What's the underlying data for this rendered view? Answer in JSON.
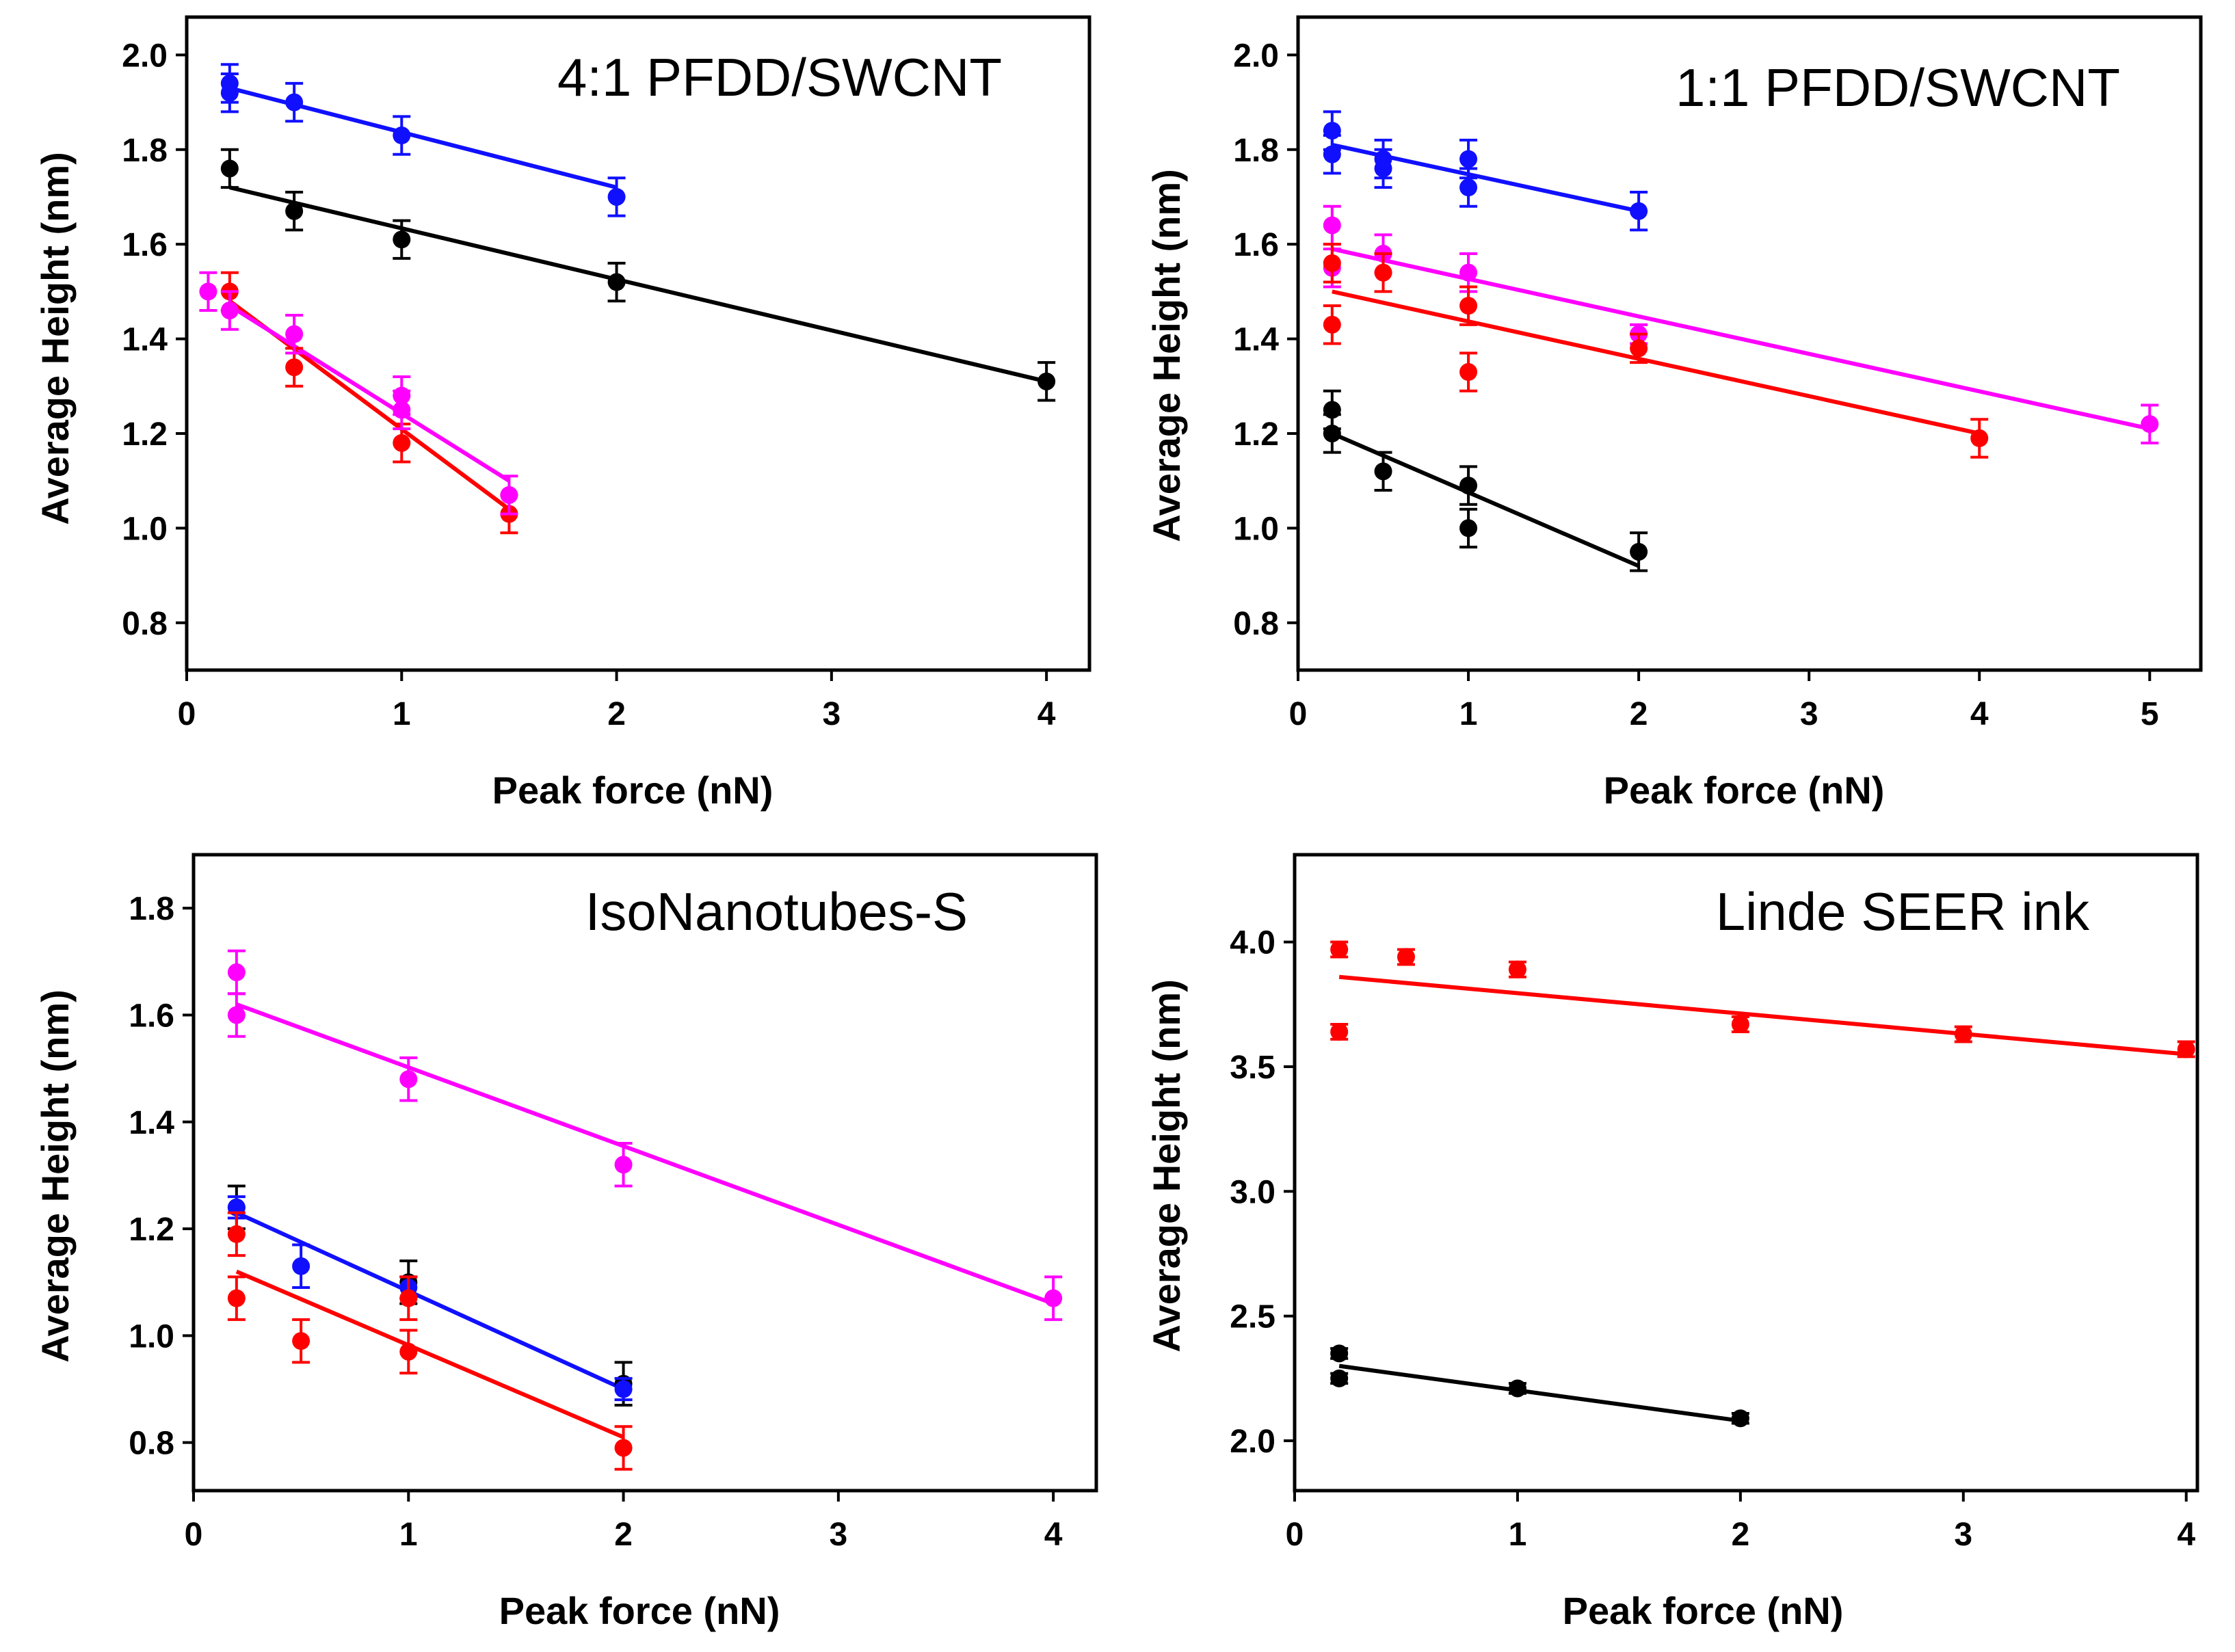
{
  "chart_data": [
    {
      "type": "scatter",
      "title": "4:1 PFDD/SWCNT",
      "xlabel": "Peak force (nN)",
      "ylabel": "Average Height (nm)",
      "xlim": [
        0,
        4.2
      ],
      "ylim": [
        0.7,
        2.08
      ],
      "xticks": [
        "0",
        "1",
        "2",
        "3",
        "4"
      ],
      "yticks": [
        "0.8",
        "1.0",
        "1.2",
        "1.4",
        "1.6",
        "1.8",
        "2.0"
      ],
      "series": [
        {
          "name": "blue",
          "color": "#1010ff",
          "points": [
            [
              0.2,
              1.94
            ],
            [
              0.2,
              1.92
            ],
            [
              0.5,
              1.9
            ],
            [
              1.0,
              1.83
            ],
            [
              2.0,
              1.7
            ]
          ],
          "errors": [
            0.04,
            0.04,
            0.04,
            0.04,
            0.04
          ],
          "fit": [
            [
              0.2,
              1.93
            ],
            [
              2.0,
              1.72
            ]
          ]
        },
        {
          "name": "black",
          "color": "#000000",
          "points": [
            [
              0.2,
              1.76
            ],
            [
              0.5,
              1.67
            ],
            [
              1.0,
              1.61
            ],
            [
              2.0,
              1.52
            ],
            [
              4.0,
              1.31
            ]
          ],
          "errors": [
            0.04,
            0.04,
            0.04,
            0.04,
            0.04
          ],
          "fit": [
            [
              0.2,
              1.72
            ],
            [
              4.0,
              1.31
            ]
          ]
        },
        {
          "name": "red",
          "color": "#ff0000",
          "points": [
            [
              0.2,
              1.5
            ],
            [
              0.5,
              1.34
            ],
            [
              1.0,
              1.18
            ],
            [
              1.5,
              1.03
            ]
          ],
          "errors": [
            0.04,
            0.04,
            0.04,
            0.04
          ],
          "fit": [
            [
              0.2,
              1.48
            ],
            [
              1.5,
              1.04
            ]
          ]
        },
        {
          "name": "magenta",
          "color": "#ff00ff",
          "points": [
            [
              0.1,
              1.5
            ],
            [
              0.2,
              1.46
            ],
            [
              0.5,
              1.41
            ],
            [
              1.0,
              1.28
            ],
            [
              1.0,
              1.25
            ],
            [
              1.5,
              1.07
            ]
          ],
          "errors": [
            0.04,
            0.04,
            0.04,
            0.04,
            0.04,
            0.04
          ],
          "fit": [
            [
              0.2,
              1.47
            ],
            [
              1.5,
              1.1
            ]
          ]
        }
      ]
    },
    {
      "type": "scatter",
      "title": "1:1 PFDD/SWCNT",
      "xlabel": "Peak force (nN)",
      "ylabel": "Average Height (nm)",
      "xlim": [
        0,
        5.3
      ],
      "ylim": [
        0.7,
        2.08
      ],
      "xticks": [
        "0",
        "1",
        "2",
        "3",
        "4",
        "5"
      ],
      "yticks": [
        "0.8",
        "1.0",
        "1.2",
        "1.4",
        "1.6",
        "1.8",
        "2.0"
      ],
      "series": [
        {
          "name": "blue",
          "color": "#1010ff",
          "points": [
            [
              0.2,
              1.84
            ],
            [
              0.2,
              1.79
            ],
            [
              0.5,
              1.78
            ],
            [
              0.5,
              1.76
            ],
            [
              1.0,
              1.78
            ],
            [
              1.0,
              1.72
            ],
            [
              2.0,
              1.67
            ]
          ],
          "errors": [
            0.04,
            0.04,
            0.04,
            0.04,
            0.04,
            0.04,
            0.04
          ],
          "fit": [
            [
              0.2,
              1.81
            ],
            [
              2.0,
              1.67
            ]
          ]
        },
        {
          "name": "magenta",
          "color": "#ff00ff",
          "points": [
            [
              0.2,
              1.64
            ],
            [
              0.2,
              1.55
            ],
            [
              0.5,
              1.58
            ],
            [
              1.0,
              1.54
            ],
            [
              2.0,
              1.41
            ],
            [
              5.0,
              1.22
            ]
          ],
          "errors": [
            0.04,
            0.04,
            0.04,
            0.04,
            0.02,
            0.04
          ],
          "fit": [
            [
              0.2,
              1.59
            ],
            [
              5.0,
              1.21
            ]
          ]
        },
        {
          "name": "red",
          "color": "#ff0000",
          "points": [
            [
              0.2,
              1.56
            ],
            [
              0.2,
              1.43
            ],
            [
              0.5,
              1.54
            ],
            [
              1.0,
              1.47
            ],
            [
              1.0,
              1.33
            ],
            [
              2.0,
              1.38
            ],
            [
              4.0,
              1.19
            ]
          ],
          "errors": [
            0.04,
            0.04,
            0.04,
            0.04,
            0.04,
            0.03,
            0.04
          ],
          "fit": [
            [
              0.2,
              1.5
            ],
            [
              4.0,
              1.2
            ]
          ]
        },
        {
          "name": "black",
          "color": "#000000",
          "points": [
            [
              0.2,
              1.25
            ],
            [
              0.2,
              1.2
            ],
            [
              0.5,
              1.12
            ],
            [
              1.0,
              1.09
            ],
            [
              1.0,
              1.0
            ],
            [
              2.0,
              0.95
            ]
          ],
          "errors": [
            0.04,
            0.04,
            0.04,
            0.04,
            0.04,
            0.04
          ],
          "fit": [
            [
              0.2,
              1.2
            ],
            [
              2.0,
              0.92
            ]
          ]
        }
      ]
    },
    {
      "type": "scatter",
      "title": "IsoNanotubes-S",
      "xlabel": "Peak force (nN)",
      "ylabel": "Average Height (nm)",
      "xlim": [
        0,
        4.2
      ],
      "ylim": [
        0.71,
        1.9
      ],
      "xticks": [
        "0",
        "1",
        "2",
        "3",
        "4"
      ],
      "yticks": [
        "0.8",
        "1.0",
        "1.2",
        "1.4",
        "1.6",
        "1.8"
      ],
      "series": [
        {
          "name": "magenta",
          "color": "#ff00ff",
          "points": [
            [
              0.2,
              1.68
            ],
            [
              0.2,
              1.6
            ],
            [
              1.0,
              1.48
            ],
            [
              2.0,
              1.32
            ],
            [
              4.0,
              1.07
            ]
          ],
          "errors": [
            0.04,
            0.04,
            0.04,
            0.04,
            0.04
          ],
          "fit": [
            [
              0.2,
              1.62
            ],
            [
              4.0,
              1.06
            ]
          ]
        },
        {
          "name": "black",
          "color": "#000000",
          "points": [
            [
              0.2,
              1.24
            ],
            [
              1.0,
              1.1
            ],
            [
              2.0,
              0.91
            ]
          ],
          "errors": [
            0.04,
            0.04,
            0.04
          ],
          "fit": null
        },
        {
          "name": "blue",
          "color": "#1010ff",
          "points": [
            [
              0.2,
              1.24
            ],
            [
              0.5,
              1.13
            ],
            [
              1.0,
              1.09
            ],
            [
              2.0,
              0.9
            ]
          ],
          "errors": [
            0.02,
            0.04,
            0.02,
            0.02
          ],
          "fit": [
            [
              0.2,
              1.23
            ],
            [
              2.0,
              0.9
            ]
          ]
        },
        {
          "name": "red",
          "color": "#ff0000",
          "points": [
            [
              0.2,
              1.19
            ],
            [
              0.2,
              1.07
            ],
            [
              0.5,
              0.99
            ],
            [
              1.0,
              1.07
            ],
            [
              1.0,
              0.97
            ],
            [
              2.0,
              0.79
            ]
          ],
          "errors": [
            0.04,
            0.04,
            0.04,
            0.04,
            0.04,
            0.04
          ],
          "fit": [
            [
              0.2,
              1.12
            ],
            [
              2.0,
              0.81
            ]
          ]
        }
      ]
    },
    {
      "type": "scatter",
      "title": "Linde SEER ink",
      "xlabel": "Peak force (nN)",
      "ylabel": "Average Height (nm)",
      "xlim": [
        0,
        4.05
      ],
      "ylim": [
        1.8,
        4.35
      ],
      "xticks": [
        "0",
        "1",
        "2",
        "3",
        "4"
      ],
      "yticks": [
        "2.0",
        "2.5",
        "3.0",
        "3.5",
        "4.0"
      ],
      "series": [
        {
          "name": "red",
          "color": "#ff0000",
          "points": [
            [
              0.2,
              3.97
            ],
            [
              0.2,
              3.64
            ],
            [
              0.5,
              3.94
            ],
            [
              1.0,
              3.89
            ],
            [
              2.0,
              3.67
            ],
            [
              3.0,
              3.63
            ],
            [
              4.0,
              3.57
            ]
          ],
          "errors": [
            0.03,
            0.03,
            0.03,
            0.03,
            0.03,
            0.03,
            0.03
          ],
          "fit": [
            [
              0.2,
              3.86
            ],
            [
              4.0,
              3.55
            ]
          ]
        },
        {
          "name": "black",
          "color": "#000000",
          "points": [
            [
              0.2,
              2.35
            ],
            [
              0.2,
              2.25
            ],
            [
              1.0,
              2.21
            ],
            [
              2.0,
              2.09
            ]
          ],
          "errors": [
            0.02,
            0.02,
            0.02,
            0.02
          ],
          "fit": [
            [
              0.2,
              2.3
            ],
            [
              2.0,
              2.08
            ]
          ]
        }
      ]
    }
  ]
}
